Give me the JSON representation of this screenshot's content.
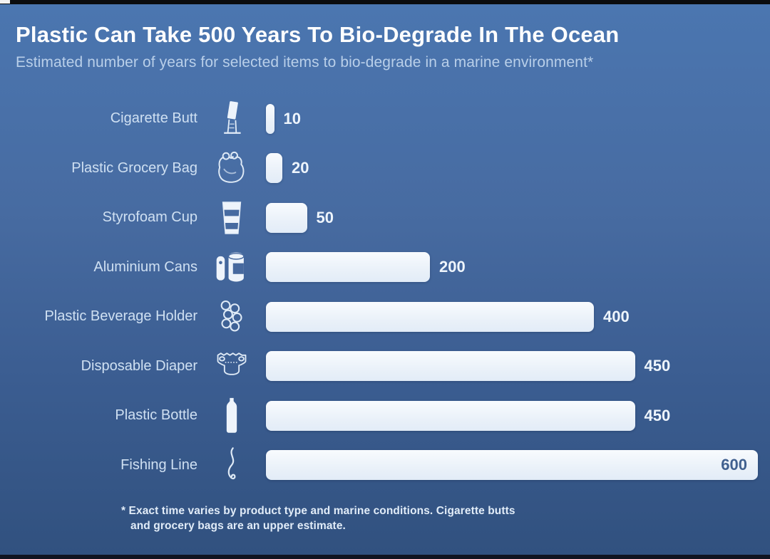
{
  "header": {
    "title": "Plastic Can Take 500 Years To Bio-Degrade In The Ocean",
    "subtitle": "Estimated number of years for selected items to bio-degrade in a marine environment*"
  },
  "footnote": {
    "line1": "* Exact time varies by product type and marine conditions. Cigarette butts",
    "line2": "and grocery bags are an upper estimate."
  },
  "colors": {
    "background_top": "#4b76b0",
    "background_bottom": "#31517f",
    "bar_fill": "#eef4fb",
    "title_text": "#ffffff",
    "subtitle_text": "#b9cfe9",
    "category_text": "#cfe0f2",
    "value_text": "#eef5fc",
    "value_text_inside": "#40608f"
  },
  "chart_data": {
    "type": "bar",
    "orientation": "horizontal",
    "title": "Plastic Can Take 500 Years To Bio-Degrade In The Ocean",
    "subtitle": "Estimated number of years for selected items to bio-degrade in a marine environment*",
    "unit": "years",
    "xlim": [
      0,
      600
    ],
    "grid": false,
    "value_labels": "end-of-bar",
    "categories": [
      "Cigarette Butt",
      "Plastic Grocery Bag",
      "Styrofoam Cup",
      "Aluminium Cans",
      "Plastic Beverage Holder",
      "Disposable Diaper",
      "Plastic Bottle",
      "Fishing Line"
    ],
    "values": [
      10,
      20,
      50,
      200,
      400,
      450,
      450,
      600
    ],
    "items": [
      {
        "label": "Cigarette Butt",
        "value": 10,
        "icon": "cigarette-butt-icon",
        "value_label_inside": false
      },
      {
        "label": "Plastic Grocery Bag",
        "value": 20,
        "icon": "grocery-bag-icon",
        "value_label_inside": false
      },
      {
        "label": "Styrofoam Cup",
        "value": 50,
        "icon": "styrofoam-cup-icon",
        "value_label_inside": false
      },
      {
        "label": "Aluminium Cans",
        "value": 200,
        "icon": "aluminium-cans-icon",
        "value_label_inside": false
      },
      {
        "label": "Plastic Beverage Holder",
        "value": 400,
        "icon": "beverage-holder-icon",
        "value_label_inside": false
      },
      {
        "label": "Disposable Diaper",
        "value": 450,
        "icon": "diaper-icon",
        "value_label_inside": false
      },
      {
        "label": "Plastic Bottle",
        "value": 450,
        "icon": "plastic-bottle-icon",
        "value_label_inside": false
      },
      {
        "label": "Fishing Line",
        "value": 600,
        "icon": "fishing-line-icon",
        "value_label_inside": true
      }
    ]
  }
}
